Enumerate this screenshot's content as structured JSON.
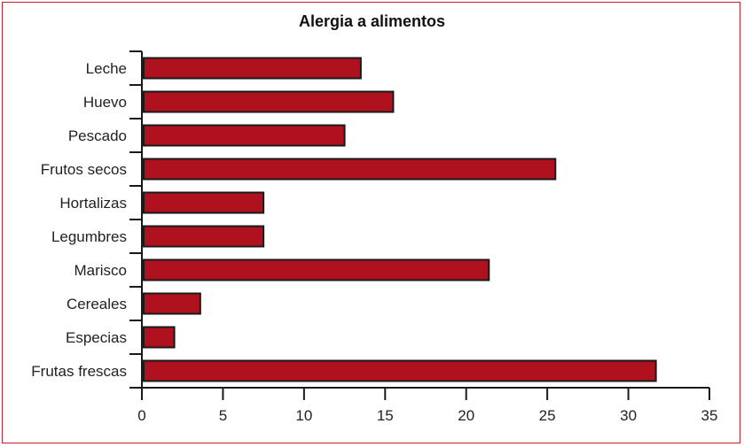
{
  "chart_data": {
    "type": "bar",
    "orientation": "horizontal",
    "title": "Alergia a alimentos",
    "xlabel": "",
    "ylabel": "",
    "categories": [
      "Leche",
      "Huevo",
      "Pescado",
      "Frutos secos",
      "Hortalizas",
      "Legumbres",
      "Marisco",
      "Cereales",
      "Especias",
      "Frutas frescas"
    ],
    "values": [
      13.5,
      15.5,
      12.5,
      25.5,
      7.5,
      7.5,
      21.4,
      3.6,
      2.0,
      31.7
    ],
    "xlim": [
      0,
      35
    ],
    "xticks": [
      "0",
      "5",
      "10",
      "15",
      "20",
      "25",
      "30",
      "35"
    ],
    "grid": false,
    "legend": "none",
    "colors": {
      "bar_fill": "#b0111e",
      "bar_stroke": "#1a1a1a",
      "frame": "#c8202a",
      "axis": "#1a1a1a"
    }
  }
}
